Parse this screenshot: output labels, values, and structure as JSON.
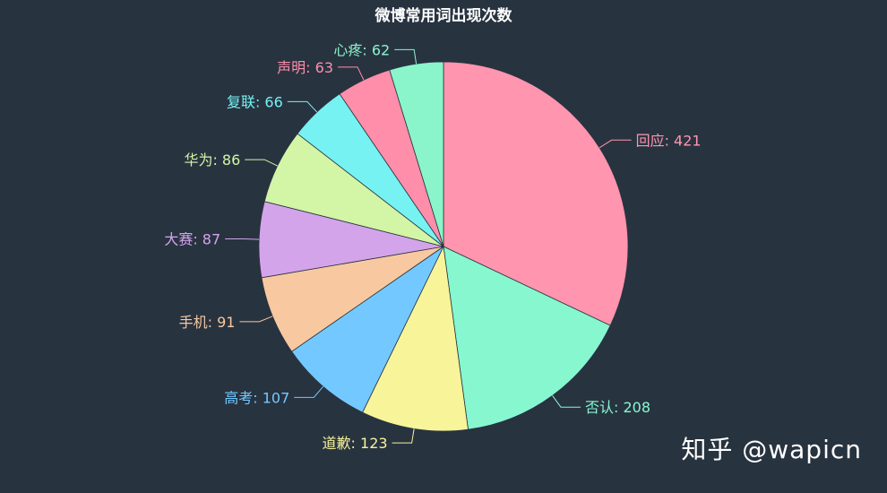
{
  "chart_data": {
    "type": "pie",
    "title": "微博常用词出现次数",
    "slices": [
      {
        "name": "回应",
        "value": 421,
        "color": "#FF95AE"
      },
      {
        "name": "否认",
        "value": 208,
        "color": "#87F7CF"
      },
      {
        "name": "道歉",
        "value": 123,
        "color": "#F7F49A"
      },
      {
        "name": "高考",
        "value": 107,
        "color": "#73C9FF"
      },
      {
        "name": "手机",
        "value": 91,
        "color": "#F8C8A0"
      },
      {
        "name": "大赛",
        "value": 87,
        "color": "#D4A4EB"
      },
      {
        "name": "华为",
        "value": 86,
        "color": "#D2F5A6"
      },
      {
        "name": "复联",
        "value": 66,
        "color": "#76F2F2"
      },
      {
        "name": "声明",
        "value": 63,
        "color": "#FF8EAA"
      },
      {
        "name": "心疼",
        "value": 62,
        "color": "#8AF5CB"
      }
    ],
    "background": "#283340"
  },
  "watermark": "知乎 @wapicn"
}
